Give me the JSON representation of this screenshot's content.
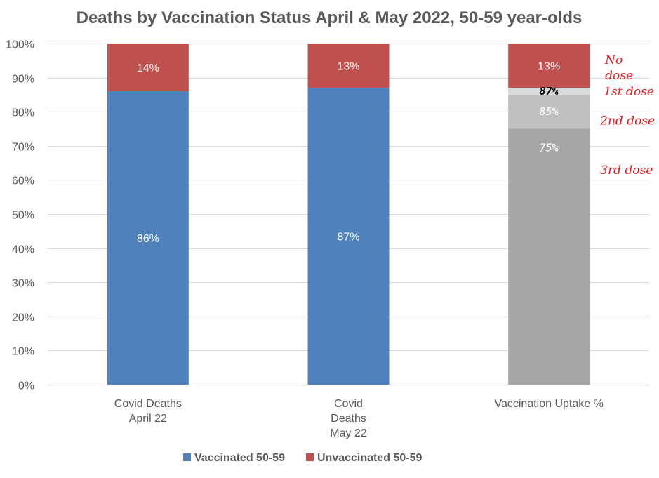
{
  "chart_data": {
    "type": "bar",
    "stacked": true,
    "title": "Deaths by Vaccination Status April & May 2022, 50-59 year-olds",
    "ylim": [
      0,
      100
    ],
    "yticks": [
      "0%",
      "10%",
      "20%",
      "30%",
      "40%",
      "50%",
      "60%",
      "70%",
      "80%",
      "90%",
      "100%"
    ],
    "grid": true,
    "legend_position": "bottom",
    "categories": [
      [
        "Covid Deaths",
        "April 22"
      ],
      [
        "Covid",
        "Deaths",
        "May 22"
      ],
      [
        "Vaccination Uptake %"
      ]
    ],
    "series": [
      {
        "name": "Vaccinated 50-59",
        "color": "#4f81bd",
        "values": [
          86,
          87,
          null
        ],
        "labels": [
          "86%",
          "87%",
          ""
        ]
      },
      {
        "name": "Unvaccinated 50-59",
        "color": "#c0504d",
        "values": [
          14,
          13,
          13
        ],
        "labels": [
          "14%",
          "13%",
          "13%"
        ]
      }
    ],
    "uptake_segments": [
      {
        "value": 75,
        "color": "#a6a6a6",
        "label": "75%",
        "label_color": "#ffffff"
      },
      {
        "value": 10,
        "color": "#bfbfbf",
        "label": "85%",
        "label_color": "#ffffff"
      },
      {
        "value": 2,
        "color": "#d9d9d9",
        "label": "87%",
        "label_color": "#000000"
      }
    ],
    "annotations": [
      {
        "lines": [
          "No",
          "dose"
        ],
        "at": 93
      },
      {
        "lines": [
          "1st dose"
        ],
        "at": 86
      },
      {
        "lines": [
          "2nd dose"
        ],
        "at": 77.5
      },
      {
        "lines": [
          "3rd dose"
        ],
        "at": 63
      }
    ]
  }
}
